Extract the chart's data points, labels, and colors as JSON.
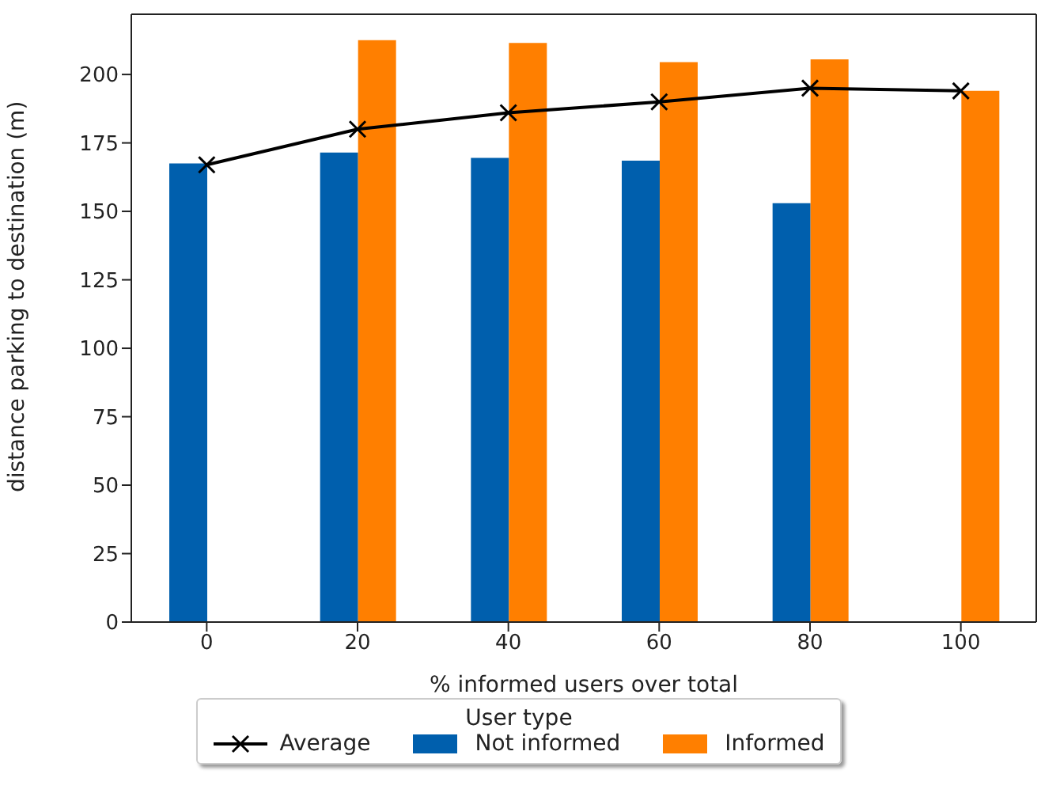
{
  "chart_data": {
    "type": "bar",
    "xlabel": "% informed users over total",
    "ylabel": "distance parking to destination (m)",
    "legend_title": "User type",
    "x": [
      0,
      20,
      40,
      60,
      80,
      100
    ],
    "xlim": [
      -10,
      110
    ],
    "xticks": [
      0,
      20,
      40,
      60,
      80,
      100
    ],
    "ylim": [
      0,
      222
    ],
    "yticks": [
      0,
      25,
      50,
      75,
      100,
      125,
      150,
      175,
      200
    ],
    "legend": "bottom",
    "grid": false,
    "series": [
      {
        "name": "Average",
        "type": "line",
        "color": "#000000",
        "marker": "cross",
        "values": [
          167,
          180,
          186,
          190,
          195,
          194
        ]
      },
      {
        "name": "Not informed",
        "color": "#005fad",
        "values": [
          167.5,
          171.5,
          169.5,
          168.5,
          153,
          null
        ]
      },
      {
        "name": "Informed",
        "color": "#ff7f00",
        "values": [
          null,
          212.5,
          211.5,
          204.5,
          205.5,
          194
        ]
      }
    ]
  }
}
